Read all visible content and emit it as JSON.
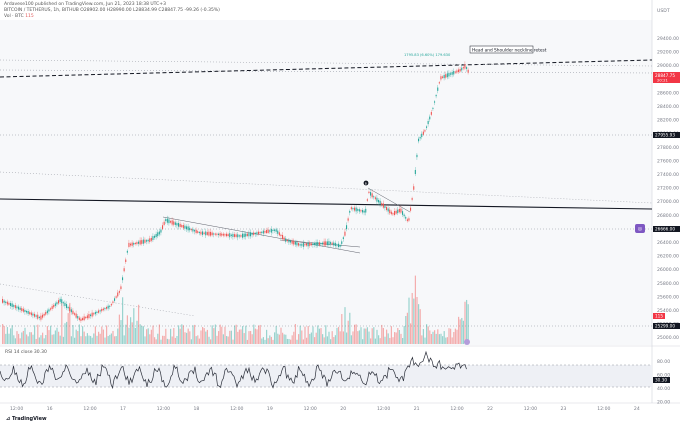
{
  "header": {
    "author_line": "Ardavese100 published on TradingView.com, Jun 21, 2023 18:38 UTC+3",
    "symbol_line": "BITCOIN / TETHERUS, 1h, BITHUB  O28902.00  H28990.00  L28834.99  C28847.75  -99.26 (-0.35%)",
    "volume_label": "Vol · BTC",
    "volume_value": "115"
  },
  "price_axis": {
    "currency": "USDT",
    "ticks": [
      "29400.00",
      "29200.00",
      "29000.00",
      "28800.00",
      "28600.00",
      "28400.00",
      "28200.00",
      "28000.00",
      "27800.00",
      "27600.00",
      "27400.00",
      "27200.00",
      "27000.00",
      "26800.00",
      "26600.00",
      "26400.00",
      "26200.00",
      "26000.00",
      "25800.00",
      "25600.00",
      "25400.00",
      "25200.00",
      "25000.00"
    ]
  },
  "badges": {
    "current_price": "28847.75",
    "current_time": "20:21",
    "level_27955": "27955.93",
    "level_26666": "26666.00",
    "level_25299": "25299.00",
    "volume_badge": "115"
  },
  "annotations": {
    "pattern_note": "Head and Shoulder neckline retest",
    "top_label": "1795.83 (6.60%) 179.630",
    "point_marker": "B"
  },
  "rsi": {
    "title": "RSI 14 close 30.30",
    "ticks": [
      "80.00",
      "60.00",
      "40.00",
      "20.00"
    ],
    "value_badge": "30.30"
  },
  "time_axis": {
    "ticks": [
      "12:00",
      "16",
      "12:00",
      "17",
      "12:00",
      "18",
      "12:00",
      "19",
      "12:00",
      "20",
      "12:00",
      "21",
      "12:00",
      "22",
      "12:00",
      "23",
      "12:00",
      "24"
    ]
  },
  "footer": {
    "logo_text": "TradingView"
  },
  "colors": {
    "up": "#26a69a",
    "down": "#ef5350",
    "badge_red": "#f23645",
    "badge_dark": "#131722",
    "rsi_line": "#2a2e39"
  }
}
